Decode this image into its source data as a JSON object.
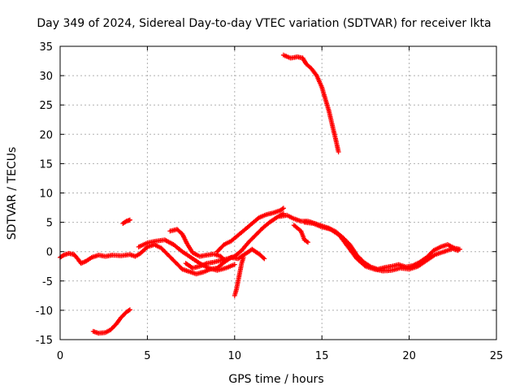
{
  "chart_data": {
    "type": "scatter",
    "title": "Day 349 of 2024, Sidereal Day-to-day VTEC variation (SDTVAR) for receiver lkta",
    "xlabel": "GPS time / hours",
    "ylabel": "SDTVAR / TECUs",
    "xlim": [
      0,
      25
    ],
    "ylim": [
      -15,
      35
    ],
    "xticks": [
      "0",
      "5",
      "10",
      "15",
      "20",
      "25"
    ],
    "yticks": [
      "-15",
      "-10",
      "-5",
      "0",
      "5",
      "10",
      "15",
      "20",
      "25",
      "30",
      "35"
    ],
    "grid": true,
    "marker": "plus",
    "color": "#ff0000",
    "series": [
      {
        "name": "track-1",
        "points": [
          [
            0.0,
            -1.0
          ],
          [
            0.2,
            -0.6
          ],
          [
            0.5,
            -0.3
          ],
          [
            0.8,
            -0.5
          ],
          [
            1.0,
            -1.2
          ],
          [
            1.2,
            -2.0
          ],
          [
            1.5,
            -1.6
          ],
          [
            1.8,
            -1.0
          ],
          [
            2.2,
            -0.6
          ],
          [
            2.6,
            -0.8
          ],
          [
            3.0,
            -0.6
          ],
          [
            3.5,
            -0.7
          ],
          [
            4.0,
            -0.5
          ],
          [
            4.3,
            -0.8
          ],
          [
            4.6,
            -0.3
          ],
          [
            5.0,
            0.8
          ],
          [
            5.4,
            1.2
          ],
          [
            5.8,
            0.6
          ],
          [
            6.2,
            -0.6
          ],
          [
            6.6,
            -1.8
          ],
          [
            7.0,
            -3.0
          ],
          [
            7.4,
            -3.4
          ],
          [
            7.8,
            -3.8
          ],
          [
            8.2,
            -3.5
          ],
          [
            8.6,
            -3.0
          ],
          [
            9.0,
            -2.8
          ],
          [
            9.4,
            -1.8
          ],
          [
            9.8,
            -1.0
          ],
          [
            10.2,
            -1.2
          ],
          [
            10.6,
            -0.4
          ],
          [
            11.0,
            0.4
          ],
          [
            11.4,
            -0.4
          ],
          [
            11.7,
            -1.2
          ]
        ]
      },
      {
        "name": "track-2",
        "points": [
          [
            4.5,
            0.8
          ],
          [
            5.0,
            1.5
          ],
          [
            5.5,
            1.8
          ],
          [
            6.0,
            2.0
          ],
          [
            6.5,
            1.2
          ],
          [
            7.0,
            0.0
          ],
          [
            7.5,
            -1.0
          ],
          [
            8.0,
            -2.0
          ],
          [
            8.5,
            -2.8
          ],
          [
            9.0,
            -3.2
          ],
          [
            9.5,
            -2.8
          ],
          [
            10.0,
            -2.2
          ]
        ]
      },
      {
        "name": "track-3",
        "points": [
          [
            6.3,
            3.5
          ],
          [
            6.7,
            3.8
          ],
          [
            7.0,
            3.0
          ],
          [
            7.3,
            1.2
          ],
          [
            7.6,
            -0.2
          ],
          [
            8.0,
            -0.8
          ],
          [
            8.4,
            -0.6
          ],
          [
            8.8,
            -0.4
          ],
          [
            9.2,
            -0.8
          ],
          [
            9.4,
            -1.4
          ]
        ]
      },
      {
        "name": "track-4",
        "points": [
          [
            7.2,
            -2.0
          ],
          [
            7.6,
            -2.8
          ],
          [
            8.0,
            -2.5
          ],
          [
            8.4,
            -2.0
          ],
          [
            8.8,
            -1.8
          ],
          [
            9.2,
            -1.5
          ],
          [
            9.6,
            -1.2
          ],
          [
            10.0,
            -0.8
          ],
          [
            10.4,
            0.2
          ],
          [
            10.8,
            1.6
          ],
          [
            11.2,
            2.8
          ],
          [
            11.6,
            4.0
          ],
          [
            12.0,
            5.0
          ],
          [
            12.4,
            5.8
          ],
          [
            12.8,
            6.5
          ]
        ]
      },
      {
        "name": "track-5",
        "points": [
          [
            9.0,
            0.0
          ],
          [
            9.4,
            1.2
          ],
          [
            9.8,
            1.8
          ],
          [
            10.2,
            2.8
          ],
          [
            10.6,
            3.8
          ],
          [
            11.0,
            4.8
          ],
          [
            11.4,
            5.8
          ],
          [
            11.8,
            6.3
          ],
          [
            12.2,
            6.6
          ],
          [
            12.6,
            7.0
          ],
          [
            12.8,
            7.4
          ]
        ]
      },
      {
        "name": "track-6",
        "points": [
          [
            10.0,
            -7.5
          ],
          [
            10.1,
            -6.5
          ],
          [
            10.2,
            -5.0
          ],
          [
            10.3,
            -3.5
          ],
          [
            10.4,
            -2.0
          ],
          [
            10.5,
            -1.0
          ]
        ]
      },
      {
        "name": "track-7",
        "points": [
          [
            12.6,
            6.0
          ],
          [
            13.0,
            6.2
          ],
          [
            13.4,
            5.6
          ],
          [
            13.8,
            5.2
          ],
          [
            14.2,
            5.2
          ],
          [
            14.6,
            4.8
          ],
          [
            15.0,
            4.4
          ],
          [
            15.4,
            4.0
          ],
          [
            15.8,
            3.4
          ],
          [
            16.2,
            2.4
          ],
          [
            16.6,
            1.2
          ],
          [
            17.0,
            -0.6
          ],
          [
            17.4,
            -1.8
          ],
          [
            17.8,
            -2.6
          ],
          [
            18.2,
            -3.0
          ],
          [
            18.6,
            -2.7
          ],
          [
            19.0,
            -2.5
          ],
          [
            19.4,
            -2.2
          ],
          [
            19.8,
            -2.6
          ],
          [
            20.2,
            -2.4
          ],
          [
            20.6,
            -1.8
          ],
          [
            21.0,
            -1.0
          ],
          [
            21.4,
            0.2
          ],
          [
            21.8,
            0.8
          ],
          [
            22.2,
            1.2
          ],
          [
            22.6,
            0.6
          ],
          [
            22.9,
            0.4
          ]
        ]
      },
      {
        "name": "track-8",
        "points": [
          [
            13.4,
            4.5
          ],
          [
            13.8,
            3.5
          ],
          [
            14.0,
            2.0
          ],
          [
            14.2,
            1.6
          ]
        ]
      },
      {
        "name": "track-9",
        "points": [
          [
            14.0,
            5.0
          ],
          [
            14.5,
            4.8
          ],
          [
            15.0,
            4.2
          ],
          [
            15.5,
            3.8
          ],
          [
            16.0,
            2.8
          ],
          [
            16.5,
            0.8
          ],
          [
            17.0,
            -1.2
          ],
          [
            17.5,
            -2.5
          ],
          [
            18.0,
            -3.0
          ],
          [
            18.5,
            -3.3
          ],
          [
            19.0,
            -3.2
          ],
          [
            19.5,
            -2.8
          ],
          [
            20.0,
            -3.0
          ],
          [
            20.5,
            -2.5
          ],
          [
            21.0,
            -1.5
          ],
          [
            21.5,
            -0.5
          ],
          [
            22.0,
            0.0
          ],
          [
            22.5,
            0.5
          ],
          [
            22.8,
            0.2
          ]
        ]
      },
      {
        "name": "track-10",
        "points": [
          [
            12.8,
            33.5
          ],
          [
            13.2,
            33.0
          ],
          [
            13.6,
            33.2
          ],
          [
            13.9,
            33.0
          ],
          [
            14.1,
            32.0
          ],
          [
            14.4,
            31.2
          ],
          [
            14.7,
            30.0
          ],
          [
            15.0,
            28.0
          ],
          [
            15.2,
            26.0
          ],
          [
            15.4,
            24.0
          ],
          [
            15.6,
            21.5
          ],
          [
            15.8,
            19.0
          ],
          [
            15.95,
            17.0
          ]
        ]
      },
      {
        "name": "track-11",
        "points": [
          [
            1.9,
            -13.6
          ],
          [
            2.2,
            -13.9
          ],
          [
            2.6,
            -13.8
          ],
          [
            2.9,
            -13.3
          ],
          [
            3.2,
            -12.4
          ],
          [
            3.5,
            -11.2
          ],
          [
            3.8,
            -10.3
          ],
          [
            4.0,
            -9.9
          ]
        ]
      },
      {
        "name": "track-12",
        "points": [
          [
            3.6,
            4.8
          ],
          [
            3.8,
            5.2
          ],
          [
            4.0,
            5.4
          ]
        ]
      }
    ]
  }
}
